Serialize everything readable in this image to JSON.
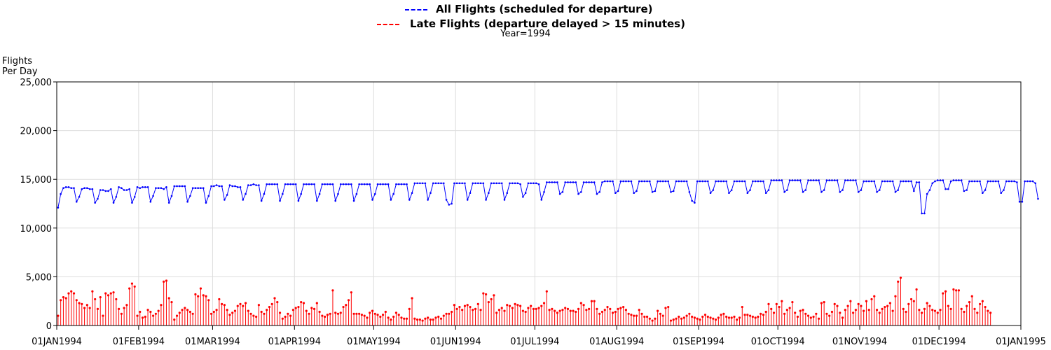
{
  "chart_data": {
    "type": "line",
    "subtitle": "Year=1994",
    "ylabel_line1": "Flights",
    "ylabel_line2": "Per Day",
    "ylim": [
      0,
      25000
    ],
    "y_ticks": [
      "0",
      "5,000",
      "10,000",
      "15,000",
      "20,000",
      "25,000"
    ],
    "x_range": [
      "1994-01-01",
      "1995-01-01"
    ],
    "x_ticks": [
      "01JAN1994",
      "01FEB1994",
      "01MAR1994",
      "01APR1994",
      "01MAY1994",
      "01JUN1994",
      "01JUL1994",
      "01AUG1994",
      "01SEP1994",
      "01OCT1994",
      "01NOV1994",
      "01DEC1994",
      "01JAN1995"
    ],
    "grid": true,
    "legend_position": "top-center",
    "series": [
      {
        "name": "All Flights (scheduled for departure)",
        "color": "#0000ff",
        "style": "dashed-legend line with point markers",
        "daily_values": [
          12100,
          13500,
          14100,
          14200,
          14200,
          14100,
          14100,
          12700,
          13200,
          14000,
          14100,
          14100,
          14000,
          14000,
          12600,
          13000,
          13900,
          13900,
          13800,
          13800,
          14000,
          12600,
          13200,
          14200,
          14100,
          13900,
          13900,
          14000,
          12600,
          13200,
          14200,
          14100,
          14200,
          14200,
          14200,
          12700,
          13300,
          14100,
          14100,
          14100,
          14000,
          14200,
          12600,
          13300,
          14300,
          14300,
          14300,
          14300,
          14300,
          12700,
          13300,
          14100,
          14100,
          14100,
          14100,
          14100,
          12600,
          13300,
          14300,
          14300,
          14400,
          14300,
          14300,
          12900,
          13400,
          14400,
          14300,
          14300,
          14200,
          14200,
          12900,
          13500,
          14400,
          14400,
          14500,
          14400,
          14400,
          12800,
          13500,
          14500,
          14500,
          14500,
          14500,
          14500,
          12800,
          13500,
          14500,
          14500,
          14500,
          14500,
          14500,
          12800,
          13500,
          14500,
          14500,
          14500,
          14500,
          14500,
          12800,
          13500,
          14500,
          14500,
          14500,
          14500,
          14500,
          12800,
          13500,
          14500,
          14500,
          14500,
          14500,
          14500,
          12800,
          13500,
          14500,
          14500,
          14500,
          14500,
          14500,
          12900,
          13500,
          14500,
          14500,
          14500,
          14500,
          14500,
          12900,
          13500,
          14500,
          14500,
          14500,
          14500,
          14500,
          12900,
          13600,
          14600,
          14600,
          14600,
          14600,
          14600,
          12900,
          13600,
          14600,
          14600,
          14600,
          14600,
          14600,
          12900,
          12400,
          12500,
          14600,
          14600,
          14600,
          14600,
          14600,
          12900,
          13600,
          14600,
          14600,
          14600,
          14600,
          14600,
          12900,
          13600,
          14600,
          14600,
          14600,
          14600,
          14600,
          12900,
          13600,
          14600,
          14600,
          14600,
          14600,
          14500,
          13200,
          13600,
          14600,
          14600,
          14600,
          14600,
          14500,
          12900,
          13700,
          14700,
          14700,
          14700,
          14700,
          14700,
          13500,
          13700,
          14700,
          14700,
          14700,
          14700,
          14700,
          13500,
          13700,
          14700,
          14700,
          14700,
          14700,
          14700,
          13500,
          13700,
          14700,
          14800,
          14800,
          14800,
          14800,
          13600,
          13800,
          14800,
          14800,
          14800,
          14800,
          14800,
          13600,
          13800,
          14800,
          14800,
          14800,
          14800,
          14800,
          13700,
          13800,
          14800,
          14800,
          14800,
          14800,
          14800,
          13700,
          13800,
          14800,
          14800,
          14800,
          14800,
          14800,
          13700,
          12800,
          12600,
          14800,
          14800,
          14800,
          14800,
          14800,
          13600,
          13900,
          14800,
          14800,
          14800,
          14800,
          14800,
          13600,
          13900,
          14800,
          14800,
          14800,
          14800,
          14800,
          13600,
          13900,
          14800,
          14800,
          14800,
          14800,
          14800,
          13600,
          13900,
          14900,
          14900,
          14900,
          14900,
          14900,
          13700,
          13900,
          14900,
          14900,
          14900,
          14900,
          14900,
          13700,
          13900,
          14900,
          14900,
          14900,
          14900,
          14900,
          13700,
          13900,
          14900,
          14900,
          14900,
          14900,
          14900,
          13700,
          13900,
          14900,
          14900,
          14900,
          14900,
          14900,
          13700,
          13900,
          14800,
          14800,
          14800,
          14800,
          14800,
          13700,
          13900,
          14800,
          14800,
          14800,
          14800,
          14800,
          13700,
          13900,
          14800,
          14800,
          14800,
          14800,
          14800,
          13800,
          14700,
          14700,
          11500,
          11500,
          13500,
          13900,
          14600,
          14800,
          14900,
          14900,
          14900,
          14000,
          14000,
          14800,
          14900,
          14900,
          14900,
          14900,
          13800,
          13900,
          14800,
          14800,
          14800,
          14800,
          14800,
          13600,
          13900,
          14800,
          14800,
          14800,
          14800,
          14800,
          13600,
          13900,
          14800,
          14800,
          14800,
          14800,
          14700,
          12700,
          12700,
          14800,
          14800,
          14800,
          14800,
          14600,
          13000
        ]
      },
      {
        "name": "Late Flights (departure delayed > 15 minutes)",
        "color": "#ff0000",
        "style": "dashed-legend needle plot with point markers",
        "daily_values": [
          1000,
          2600,
          2900,
          2800,
          3300,
          3500,
          3300,
          2600,
          2300,
          2200,
          1800,
          2100,
          1800,
          3500,
          2700,
          1700,
          2900,
          1000,
          3300,
          3100,
          3300,
          3400,
          2700,
          1700,
          1200,
          1800,
          2100,
          3800,
          4300,
          4000,
          1000,
          1400,
          800,
          900,
          1600,
          1400,
          1000,
          1200,
          1500,
          2100,
          4500,
          4600,
          2800,
          2400,
          600,
          1000,
          1300,
          1600,
          1800,
          1600,
          1400,
          1200,
          3200,
          3000,
          3800,
          3100,
          3000,
          2600,
          1200,
          1400,
          1600,
          2700,
          2200,
          2100,
          1600,
          1100,
          1300,
          1500,
          2000,
          2200,
          2000,
          2300,
          1500,
          1200,
          1000,
          900,
          2100,
          1400,
          1200,
          1600,
          1900,
          2200,
          2800,
          2400,
          1300,
          700,
          900,
          1200,
          1000,
          1600,
          1800,
          1900,
          2400,
          2300,
          1500,
          1200,
          1800,
          1700,
          2300,
          1400,
          1000,
          900,
          1100,
          1200,
          3600,
          1300,
          1200,
          1300,
          1900,
          2100,
          2600,
          3400,
          1200,
          1200,
          1200,
          1100,
          1000,
          800,
          1300,
          1500,
          1200,
          1100,
          900,
          1100,
          1400,
          800,
          600,
          900,
          1300,
          1100,
          800,
          700,
          700,
          1700,
          2800,
          700,
          600,
          600,
          500,
          700,
          800,
          600,
          600,
          800,
          900,
          700,
          1000,
          1200,
          1200,
          1400,
          2100,
          1700,
          1900,
          1600,
          2000,
          2100,
          1900,
          1600,
          1700,
          2200,
          1600,
          3300,
          3200,
          2400,
          2700,
          3100,
          1300,
          1600,
          1800,
          1500,
          2100,
          2000,
          1800,
          2200,
          2100,
          2000,
          1500,
          1400,
          1800,
          2000,
          1700,
          1700,
          1800,
          2000,
          2300,
          3500,
          1600,
          1700,
          1500,
          1300,
          1500,
          1600,
          1800,
          1700,
          1500,
          1500,
          1400,
          1700,
          2300,
          2100,
          1600,
          1700,
          2500,
          2500,
          1700,
          1200,
          1400,
          1600,
          1900,
          1700,
          1300,
          1400,
          1700,
          1800,
          1900,
          1600,
          1200,
          1100,
          1000,
          1000,
          1600,
          1200,
          900,
          900,
          700,
          500,
          700,
          1500,
          1200,
          1000,
          1800,
          1900,
          500,
          600,
          700,
          900,
          700,
          800,
          1000,
          1200,
          900,
          800,
          700,
          600,
          900,
          1100,
          900,
          800,
          700,
          600,
          800,
          1100,
          1200,
          900,
          800,
          800,
          900,
          600,
          800,
          1900,
          1100,
          1100,
          1000,
          900,
          800,
          900,
          1200,
          1100,
          1400,
          2200,
          1700,
          1300,
          2200,
          1900,
          2500,
          1200,
          1600,
          1800,
          2400,
          1300,
          900,
          1500,
          1600,
          1200,
          1000,
          800,
          900,
          1200,
          700,
          2300,
          2400,
          1200,
          1000,
          1400,
          2200,
          2000,
          1300,
          800,
          1600,
          2000,
          2500,
          1300,
          1600,
          2200,
          2000,
          1500,
          2500,
          1600,
          2700,
          3000,
          1600,
          1300,
          1700,
          1900,
          2000,
          2300,
          1500,
          3000,
          4500,
          4900,
          1700,
          1400,
          2200,
          2700,
          2500,
          3700,
          1600,
          1300,
          1700,
          2300,
          2000,
          1600,
          1500,
          1300,
          1600,
          3300,
          3500,
          2000,
          1700,
          3700,
          3600,
          3600,
          1700,
          1400,
          2000,
          2400,
          3000,
          1700,
          1300,
          2200,
          2500,
          1900,
          1500,
          1300
        ]
      }
    ]
  }
}
